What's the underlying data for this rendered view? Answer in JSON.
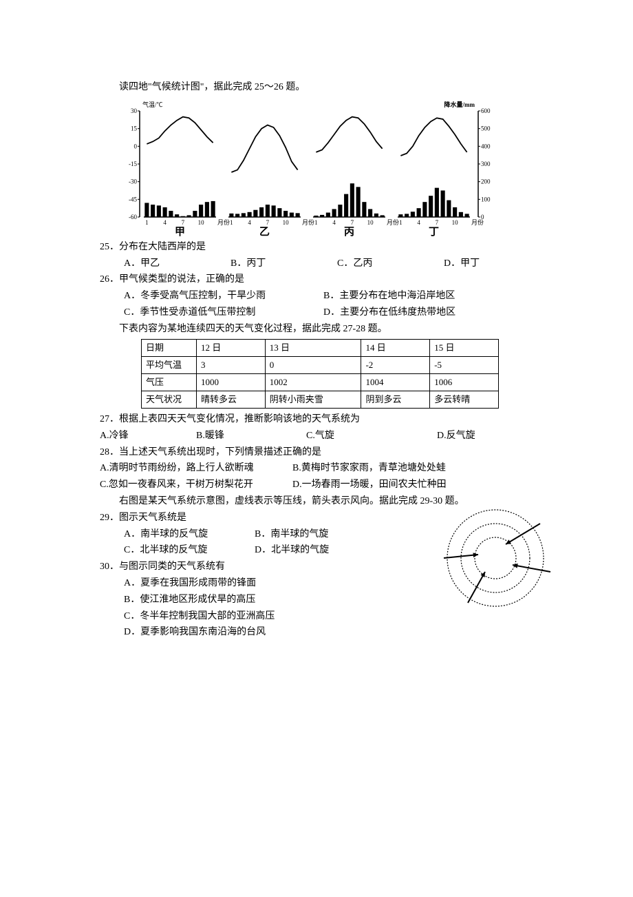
{
  "intro25": "读四地\"气候统计图\"，据此完成 25～26 题。",
  "chart": {
    "y_left_label": "气温/℃",
    "y_left_ticks": [
      "30",
      "15",
      "0",
      "-15",
      "-30",
      "-45",
      "-60"
    ],
    "y_right_label": "降水量/mm",
    "y_right_ticks": [
      "600",
      "500",
      "400",
      "300",
      "200",
      "100",
      "0"
    ],
    "x_ticks": [
      "1",
      "4",
      "7",
      "10",
      "月份"
    ],
    "panels": [
      "甲",
      "乙",
      "丙",
      "丁"
    ],
    "line_color": "#000000",
    "bar_color": "#000000",
    "bg": "#ffffff",
    "font_size": 9,
    "temp_data": {
      "jia": [
        2,
        4,
        7,
        13,
        18,
        22,
        25,
        24,
        20,
        14,
        8,
        3
      ],
      "yi": [
        -22,
        -20,
        -12,
        -2,
        8,
        15,
        18,
        16,
        9,
        -1,
        -13,
        -20
      ],
      "bing": [
        -5,
        -3,
        3,
        10,
        17,
        22,
        25,
        24,
        19,
        12,
        4,
        -2
      ],
      "ding": [
        -8,
        -6,
        0,
        9,
        16,
        21,
        24,
        23,
        17,
        10,
        2,
        -5
      ]
    },
    "precip_data": {
      "jia": [
        80,
        70,
        65,
        55,
        35,
        15,
        5,
        10,
        35,
        70,
        85,
        90
      ],
      "yi": [
        20,
        18,
        22,
        28,
        40,
        55,
        70,
        65,
        50,
        35,
        25,
        22
      ],
      "bing": [
        8,
        12,
        25,
        45,
        70,
        130,
        190,
        170,
        85,
        45,
        20,
        10
      ],
      "ding": [
        15,
        18,
        30,
        50,
        85,
        120,
        165,
        150,
        95,
        55,
        28,
        18
      ]
    }
  },
  "q25": {
    "text": "25．分布在大陆西岸的是",
    "A": "A．甲乙",
    "B": "B．丙丁",
    "C": "C．乙丙",
    "D": "D．甲丁"
  },
  "q26": {
    "text": "26．甲气候类型的说法，正确的是",
    "A": "A．冬季受高气压控制，干旱少雨",
    "B": "B．主要分布在地中海沿岸地区",
    "C": "C．季节性受赤道低气压带控制",
    "D": "D．主要分布在低纬度热带地区"
  },
  "intro27": "下表内容为某地连续四天的天气变化过程，据此完成 27-28 题。",
  "table": {
    "rows": [
      [
        "日期",
        "12 日",
        "13 日",
        "14 日",
        "15 日"
      ],
      [
        "平均气温",
        "3",
        "0",
        "-2",
        "-5"
      ],
      [
        "气压",
        "1000",
        "1002",
        "1004",
        "1006"
      ],
      [
        "天气状况",
        "晴转多云",
        "阴转小雨夹雪",
        "阴到多云",
        "多云转晴"
      ]
    ]
  },
  "q27": {
    "text": "27．根据上表四天天气变化情况，推断影响该地的天气系统为",
    "A": "A.冷锋",
    "B": "B.暖锋",
    "C": "C.气旋",
    "D": "D.反气旋"
  },
  "q28": {
    "text": "28．当上述天气系统出现时，下列情景描述正确的是",
    "A": "A.清明时节雨纷纷，路上行人欲断魂",
    "B": "B.黄梅时节家家雨，青草池塘处处蛙",
    "C": "C.忽如一夜春风来，干树万树梨花开",
    "D": "D.一场春雨一场暖，田间农夫忙种田"
  },
  "intro29": "右图是某天气系统示意图，虚线表示等压线，箭头表示风向。据此完成 29-30 题。",
  "q29": {
    "text": "29．图示天气系统是",
    "A": "A．南半球的反气旋",
    "B": "B．南半球的气旋",
    "C": "C．北半球的反气旋",
    "D": "D．北半球的气旋"
  },
  "q30": {
    "text": "30．与图示同类的天气系统有",
    "A": "A．夏季在我国形成雨带的锋面",
    "B": "B．使江淮地区形成伏旱的高压",
    "C": "C．冬半年控制我国大部的亚洲高压",
    "D": "D．夏季影响我国东南沿海的台风"
  },
  "cyclone": {
    "stroke": "#000000",
    "dash": "2,2"
  }
}
